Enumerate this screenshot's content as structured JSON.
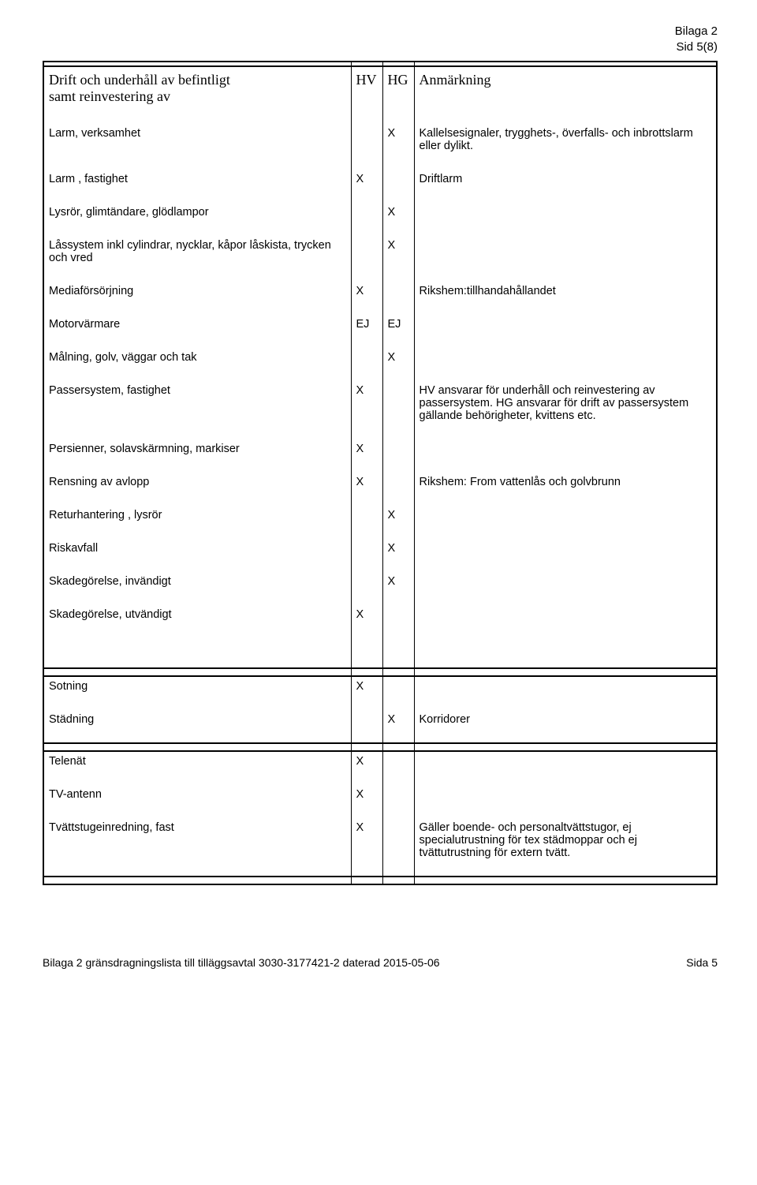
{
  "header": {
    "bilaga": "Bilaga 2",
    "sid": "Sid 5(8)"
  },
  "table": {
    "head": {
      "col1a": "Drift och underhåll av befintligt",
      "col1b": "samt reinvestering av",
      "col2": "HV",
      "col3": "HG",
      "col4": "Anmärkning"
    },
    "rows": [
      {
        "c1": "Larm, verksamhet",
        "c2": "",
        "c3": "X",
        "c4": "Kallelsesignaler, trygghets-, överfalls- och inbrottslarm eller dylikt."
      },
      {
        "c1": "Larm , fastighet",
        "c2": "X",
        "c3": "",
        "c4": "Driftlarm"
      },
      {
        "c1": "Lysrör, glimtändare, glödlampor",
        "c2": "",
        "c3": "X",
        "c4": ""
      },
      {
        "c1": "Låssystem inkl cylindrar, nycklar, kåpor låskista, trycken och vred",
        "c2": "",
        "c3": "X",
        "c4": ""
      },
      {
        "c1": "Mediaförsörjning",
        "c2": "X",
        "c3": "",
        "c4": "Rikshem:tillhandahållandet"
      },
      {
        "c1": "Motorvärmare",
        "c2": "EJ",
        "c3": "EJ",
        "c4": ""
      },
      {
        "c1": "Målning, golv, väggar och tak",
        "c2": "",
        "c3": "X",
        "c4": ""
      },
      {
        "c1": "Passersystem, fastighet",
        "c2": "X",
        "c3": "",
        "c4": "HV ansvarar för underhåll och reinvestering av passersystem. HG ansvarar för drift av passersystem gällande behörigheter, kvittens etc."
      },
      {
        "c1": "Persienner, solavskärmning, markiser",
        "c2": "X",
        "c3": "",
        "c4": ""
      },
      {
        "c1": "Rensning av avlopp",
        "c2": "X",
        "c3": "",
        "c4": "Rikshem: From vattenlås och golvbrunn"
      },
      {
        "c1": "Returhantering , lysrör",
        "c2": "",
        "c3": "X",
        "c4": ""
      },
      {
        "c1": "Riskavfall",
        "c2": "",
        "c3": "X",
        "c4": ""
      },
      {
        "c1": "Skadegörelse, invändigt",
        "c2": "",
        "c3": "X",
        "c4": ""
      },
      {
        "c1": "Skadegörelse, utvändigt",
        "c2": "X",
        "c3": "",
        "c4": ""
      }
    ],
    "block2": [
      {
        "c1": "Sotning",
        "c2": "X",
        "c3": "",
        "c4": ""
      },
      {
        "c1": "Städning",
        "c2": "",
        "c3": "X",
        "c4": "Korridorer"
      }
    ],
    "block3": [
      {
        "c1": "Telenät",
        "c2": "X",
        "c3": "",
        "c4": ""
      },
      {
        "c1": "TV-antenn",
        "c2": "X",
        "c3": "",
        "c4": ""
      },
      {
        "c1": "Tvättstugeinredning, fast",
        "c2": "X",
        "c3": "",
        "c4": "Gäller boende- och personaltvättstugor, ej specialutrustning för tex städmoppar och ej tvättutrustning för extern tvätt."
      }
    ]
  },
  "footer": {
    "left": "Bilaga 2 gränsdragningslista till tilläggsavtal 3030-3177421-2 daterad 2015-05-06",
    "right": "Sida 5"
  }
}
